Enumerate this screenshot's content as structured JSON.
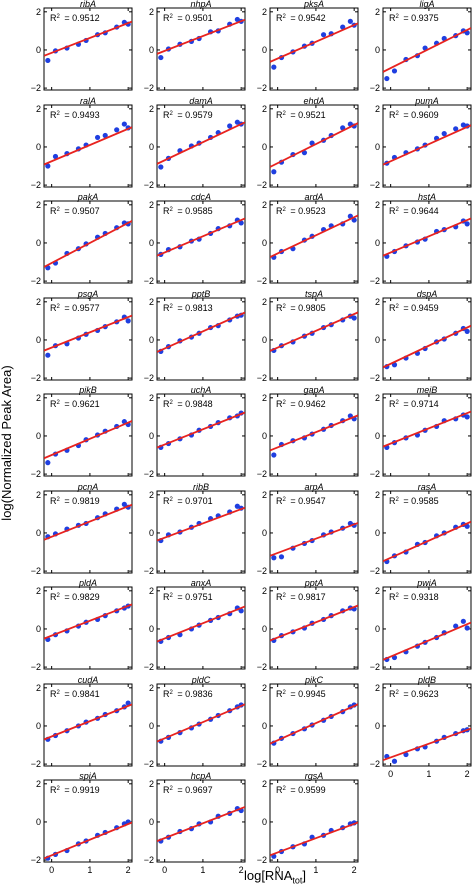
{
  "figure": {
    "ylabel": "log(Normalized Peak Area)",
    "xlabel_main": "log[RNA",
    "xlabel_sub": "tot",
    "xlabel_end": "]"
  },
  "chart_data": {
    "type": "scatter",
    "layout": "small multiples, 4 columns",
    "xlim": [
      -0.2,
      2.1
    ],
    "ylim": [
      -2.1,
      2.2
    ],
    "xticks": [
      0,
      1,
      2
    ],
    "yticks": [
      -2,
      0,
      2
    ],
    "x_tick_labels_shown_on": [
      "spiA",
      "hcpA",
      "rgsA",
      "pldB"
    ],
    "point_color": "#1f3fe0",
    "line_color": "#e8231f",
    "x_levels": [
      -0.1,
      0.1,
      0.4,
      0.7,
      0.9,
      1.2,
      1.4,
      1.7,
      1.9,
      2.0
    ],
    "panels": [
      {
        "name": "ribA",
        "r2_text": "R",
        "r2_value": "= 0.9512",
        "fit": {
          "intercept": -0.15,
          "slope": 0.78
        },
        "y": [
          -0.55,
          -0.05,
          0.1,
          0.3,
          0.5,
          0.8,
          0.9,
          1.2,
          1.45,
          1.35
        ]
      },
      {
        "name": "nhpA",
        "r2_text": "R",
        "r2_value": "= 0.9501",
        "fit": {
          "intercept": -0.05,
          "slope": 0.78
        },
        "y": [
          -0.4,
          0.05,
          0.3,
          0.45,
          0.6,
          0.95,
          1.0,
          1.35,
          1.6,
          1.5
        ]
      },
      {
        "name": "pksA",
        "r2_text": "R",
        "r2_value": "= 0.9542",
        "fit": {
          "intercept": -0.45,
          "slope": 0.88
        },
        "y": [
          -0.9,
          -0.4,
          -0.1,
          0.2,
          0.35,
          0.8,
          0.85,
          1.2,
          1.5,
          1.3
        ]
      },
      {
        "name": "ligA",
        "r2_text": "R",
        "r2_value": "= 0.9375",
        "fit": {
          "intercept": -0.95,
          "slope": 1.0
        },
        "y": [
          -1.5,
          -1.1,
          -0.5,
          -0.3,
          0.1,
          0.35,
          0.6,
          0.75,
          1.0,
          0.9
        ]
      },
      {
        "name": "ralA",
        "r2_text": "R",
        "r2_value": "= 0.9493",
        "fit": {
          "intercept": -0.75,
          "slope": 0.85
        },
        "y": [
          -1.0,
          -0.5,
          -0.35,
          -0.1,
          0.1,
          0.5,
          0.6,
          0.9,
          1.2,
          1.0
        ]
      },
      {
        "name": "damA",
        "r2_text": "R",
        "r2_value": "= 0.9579",
        "fit": {
          "intercept": -0.7,
          "slope": 0.95
        },
        "y": [
          -1.05,
          -0.6,
          -0.2,
          0.05,
          0.2,
          0.5,
          0.75,
          1.1,
          1.3,
          1.2
        ]
      },
      {
        "name": "ehdA",
        "r2_text": "R",
        "r2_value": "= 0.9521",
        "fit": {
          "intercept": -0.85,
          "slope": 1.0
        },
        "y": [
          -1.3,
          -0.8,
          -0.4,
          -0.3,
          0.2,
          0.35,
          0.6,
          1.0,
          1.2,
          1.1
        ]
      },
      {
        "name": "pumA",
        "r2_text": "R",
        "r2_value": "= 0.9609",
        "fit": {
          "intercept": -0.75,
          "slope": 0.9
        },
        "y": [
          -0.85,
          -0.55,
          -0.3,
          -0.1,
          0.1,
          0.45,
          0.7,
          0.95,
          1.15,
          1.1
        ]
      },
      {
        "name": "pakA",
        "r2_text": "R",
        "r2_value": "= 0.9507",
        "fit": {
          "intercept": -1.05,
          "slope": 1.05
        },
        "y": [
          -1.3,
          -1.05,
          -0.55,
          -0.3,
          -0.05,
          0.3,
          0.5,
          0.8,
          1.05,
          1.0
        ]
      },
      {
        "name": "cdcA",
        "r2_text": "R",
        "r2_value": "= 0.9585",
        "fit": {
          "intercept": -0.5,
          "slope": 0.85
        },
        "y": [
          -0.6,
          -0.35,
          -0.2,
          0.1,
          0.2,
          0.5,
          0.75,
          0.9,
          1.2,
          1.05
        ]
      },
      {
        "name": "ardA",
        "r2_text": "R",
        "r2_value": "= 0.9523",
        "fit": {
          "intercept": -0.55,
          "slope": 0.95
        },
        "y": [
          -0.75,
          -0.45,
          -0.3,
          0.15,
          0.35,
          0.7,
          0.9,
          1.0,
          1.4,
          1.2
        ]
      },
      {
        "name": "hstA",
        "r2_text": "R",
        "r2_value": "= 0.9644",
        "fit": {
          "intercept": -0.5,
          "slope": 0.85
        },
        "y": [
          -0.7,
          -0.45,
          -0.15,
          0.05,
          0.2,
          0.6,
          0.7,
          0.85,
          1.15,
          1.0
        ]
      },
      {
        "name": "psgA",
        "r2_text": "R",
        "r2_value": "= 0.9577",
        "fit": {
          "intercept": -0.4,
          "slope": 0.8
        },
        "y": [
          -0.8,
          -0.3,
          -0.2,
          0.1,
          0.3,
          0.5,
          0.7,
          0.95,
          1.2,
          1.0
        ]
      },
      {
        "name": "pptB",
        "r2_text": "R",
        "r2_value": "= 0.9813",
        "fit": {
          "intercept": -0.45,
          "slope": 0.9
        },
        "y": [
          -0.6,
          -0.35,
          -0.05,
          0.15,
          0.35,
          0.65,
          0.75,
          1.05,
          1.25,
          1.3
        ]
      },
      {
        "name": "tspA",
        "r2_text": "R",
        "r2_value": "= 0.9805",
        "fit": {
          "intercept": -0.4,
          "slope": 0.88
        },
        "y": [
          -0.55,
          -0.3,
          -0.1,
          0.2,
          0.35,
          0.65,
          0.8,
          1.05,
          1.25,
          1.15
        ]
      },
      {
        "name": "dspA",
        "r2_text": "R",
        "r2_value": "= 0.9459",
        "fit": {
          "intercept": -1.25,
          "slope": 0.95
        },
        "y": [
          -1.4,
          -1.3,
          -0.95,
          -0.7,
          -0.45,
          -0.1,
          0.05,
          0.35,
          0.6,
          0.45
        ]
      },
      {
        "name": "pikB",
        "r2_text": "R",
        "r2_value": "= 0.9621",
        "fit": {
          "intercept": -1.0,
          "slope": 0.85
        },
        "y": [
          -1.4,
          -0.95,
          -0.75,
          -0.5,
          -0.2,
          0.05,
          0.25,
          0.5,
          0.75,
          0.6
        ]
      },
      {
        "name": "uchA",
        "r2_text": "R",
        "r2_value": "= 0.9848",
        "fit": {
          "intercept": -0.45,
          "slope": 0.8
        },
        "y": [
          -0.6,
          -0.4,
          -0.15,
          0.05,
          0.3,
          0.5,
          0.7,
          0.95,
          1.05,
          1.2
        ]
      },
      {
        "name": "gapA",
        "r2_text": "R",
        "r2_value": "= 0.9462",
        "fit": {
          "intercept": -0.6,
          "slope": 0.8
        },
        "y": [
          -1.0,
          -0.45,
          -0.25,
          -0.1,
          0.1,
          0.35,
          0.55,
          0.8,
          1.05,
          0.9
        ]
      },
      {
        "name": "meiB",
        "r2_text": "R",
        "r2_value": "= 0.9714",
        "fit": {
          "intercept": -0.4,
          "slope": 0.8
        },
        "y": [
          -0.6,
          -0.35,
          -0.1,
          0.05,
          0.3,
          0.5,
          0.8,
          0.9,
          1.1,
          1.0
        ]
      },
      {
        "name": "pcnA",
        "r2_text": "R",
        "r2_value": "= 0.9819",
        "fit": {
          "intercept": -0.2,
          "slope": 0.8
        },
        "y": [
          -0.2,
          -0.05,
          0.2,
          0.4,
          0.5,
          0.8,
          1.0,
          1.25,
          1.5,
          1.35
        ]
      },
      {
        "name": "ribB",
        "r2_text": "R",
        "r2_value": "= 0.9701",
        "fit": {
          "intercept": -0.25,
          "slope": 0.75
        },
        "y": [
          -0.4,
          -0.1,
          0.05,
          0.3,
          0.5,
          0.75,
          0.9,
          1.1,
          1.4,
          1.3
        ]
      },
      {
        "name": "arpA",
        "r2_text": "R",
        "r2_value": "= 0.9547",
        "fit": {
          "intercept": -1.05,
          "slope": 0.75
        },
        "y": [
          -1.3,
          -1.25,
          -0.8,
          -0.55,
          -0.4,
          -0.1,
          0.05,
          0.25,
          0.5,
          0.4
        ]
      },
      {
        "name": "rasA",
        "r2_text": "R",
        "r2_value": "= 0.9585",
        "fit": {
          "intercept": -1.3,
          "slope": 0.9
        },
        "y": [
          -1.5,
          -1.2,
          -1.0,
          -0.6,
          -0.5,
          -0.15,
          0.0,
          0.3,
          0.45,
          0.35
        ]
      },
      {
        "name": "pldA",
        "r2_text": "R",
        "r2_value": "= 0.9829",
        "fit": {
          "intercept": -0.35,
          "slope": 0.78
        },
        "y": [
          -0.55,
          -0.3,
          -0.1,
          0.15,
          0.35,
          0.5,
          0.7,
          0.95,
          1.1,
          1.2
        ]
      },
      {
        "name": "anxA",
        "r2_text": "R",
        "r2_value": "= 0.9751",
        "fit": {
          "intercept": -0.5,
          "slope": 0.8
        },
        "y": [
          -0.65,
          -0.45,
          -0.3,
          0.0,
          0.2,
          0.45,
          0.6,
          0.8,
          1.1,
          0.95
        ]
      },
      {
        "name": "pptA",
        "r2_text": "R",
        "r2_value": "= 0.9817",
        "fit": {
          "intercept": -0.45,
          "slope": 0.8
        },
        "y": [
          -0.6,
          -0.35,
          -0.15,
          0.05,
          0.3,
          0.5,
          0.7,
          0.95,
          1.1,
          1.05
        ]
      },
      {
        "name": "pwiA",
        "r2_text": "R",
        "r2_value": "= 0.9318",
        "fit": {
          "intercept": -1.45,
          "slope": 0.85
        },
        "y": [
          -1.6,
          -1.5,
          -1.2,
          -0.9,
          -0.7,
          -0.45,
          -0.2,
          0.15,
          0.4,
          0.05
        ]
      },
      {
        "name": "cudA",
        "r2_text": "R",
        "r2_value": "= 0.9841",
        "fit": {
          "intercept": -0.55,
          "slope": 0.8
        },
        "y": [
          -0.7,
          -0.5,
          -0.25,
          0.0,
          0.2,
          0.4,
          0.6,
          0.8,
          1.0,
          1.2
        ]
      },
      {
        "name": "pldC",
        "r2_text": "R",
        "r2_value": "= 0.9836",
        "fit": {
          "intercept": -0.65,
          "slope": 0.85
        },
        "y": [
          -0.8,
          -0.6,
          -0.35,
          -0.1,
          0.1,
          0.35,
          0.55,
          0.8,
          1.0,
          1.1
        ]
      },
      {
        "name": "pikC",
        "r2_text": "R",
        "r2_value": "= 0.9945",
        "fit": {
          "intercept": -0.75,
          "slope": 0.9
        },
        "y": [
          -0.9,
          -0.65,
          -0.4,
          -0.15,
          0.05,
          0.3,
          0.5,
          0.75,
          1.0,
          1.1
        ]
      },
      {
        "name": "pldB",
        "r2_text": "R",
        "r2_value": "= 0.9623",
        "fit": {
          "intercept": -1.65,
          "slope": 0.72
        },
        "y": [
          -1.6,
          -1.85,
          -1.5,
          -1.2,
          -1.1,
          -0.8,
          -0.6,
          -0.4,
          -0.25,
          -0.2
        ]
      },
      {
        "name": "spiA",
        "r2_text": "R",
        "r2_value": "= 0.9919",
        "fit": {
          "intercept": -1.75,
          "slope": 0.82
        },
        "y": [
          -1.9,
          -1.7,
          -1.5,
          -1.15,
          -1.0,
          -0.7,
          -0.55,
          -0.3,
          -0.1,
          0.0
        ]
      },
      {
        "name": "hcpA",
        "r2_text": "R",
        "r2_value": "= 0.9697",
        "fit": {
          "intercept": -0.85,
          "slope": 0.78
        },
        "y": [
          -1.0,
          -0.8,
          -0.5,
          -0.35,
          -0.1,
          0.0,
          0.3,
          0.45,
          0.7,
          0.6
        ]
      },
      {
        "name": "rgsA",
        "r2_text": "R",
        "r2_value": "= 0.9599",
        "fit": {
          "intercept": -1.6,
          "slope": 0.75
        },
        "y": [
          -1.8,
          -1.55,
          -1.3,
          -1.15,
          -0.8,
          -0.7,
          -0.45,
          -0.3,
          -0.1,
          -0.05
        ]
      }
    ]
  }
}
